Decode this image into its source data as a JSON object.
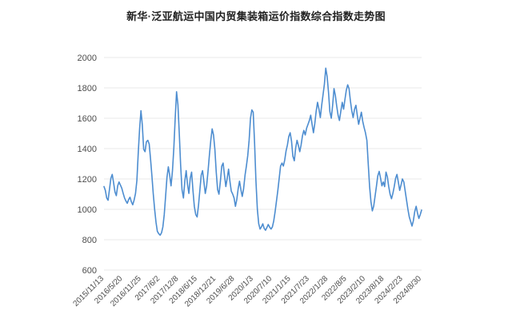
{
  "page": {
    "background": "#ffffff"
  },
  "chart_data": {
    "type": "line",
    "title": "新华·泛亚航运中国内贸集装箱运价指数综合指数走势图",
    "legend": "none",
    "grid": true,
    "line_color": "#4d8dd0",
    "gridline_color": "#e8e8e8",
    "tick_label_color": "#4d4d4d",
    "ylim": [
      600,
      2000
    ],
    "y_ticks": [
      600,
      800,
      1000,
      1200,
      1400,
      1600,
      1800,
      2000
    ],
    "x_tick_labels": [
      "2015/11/13",
      "2016/5/20",
      "2016/11/25",
      "2017/6/2",
      "2017/12/8",
      "2018/6/15",
      "2018/12/21",
      "2019/6/28",
      "2020/1/3",
      "2020/7/10",
      "2021/1/15",
      "2021/7/23",
      "2022/1/28",
      "2022/8/5",
      "2023/2/10",
      "2023/8/18",
      "2024/2/23",
      "2024/8/30"
    ],
    "values": [
      1150,
      1125,
      1075,
      1060,
      1130,
      1205,
      1230,
      1175,
      1115,
      1090,
      1155,
      1180,
      1160,
      1140,
      1105,
      1075,
      1055,
      1040,
      1065,
      1080,
      1050,
      1030,
      1060,
      1105,
      1190,
      1370,
      1530,
      1650,
      1555,
      1395,
      1380,
      1445,
      1455,
      1430,
      1330,
      1220,
      1100,
      1000,
      915,
      855,
      840,
      830,
      845,
      885,
      965,
      1085,
      1210,
      1280,
      1225,
      1155,
      1255,
      1405,
      1600,
      1775,
      1690,
      1500,
      1290,
      1130,
      1075,
      1185,
      1255,
      1165,
      1105,
      1205,
      1245,
      1125,
      1020,
      965,
      950,
      1025,
      1125,
      1225,
      1255,
      1180,
      1105,
      1155,
      1255,
      1360,
      1455,
      1530,
      1490,
      1395,
      1245,
      1130,
      1100,
      1185,
      1285,
      1305,
      1225,
      1150,
      1205,
      1265,
      1185,
      1120,
      1100,
      1075,
      1020,
      1065,
      1135,
      1185,
      1130,
      1085,
      1135,
      1225,
      1285,
      1355,
      1455,
      1600,
      1655,
      1640,
      1440,
      1190,
      1000,
      905,
      870,
      885,
      905,
      875,
      862,
      880,
      900,
      882,
      870,
      885,
      925,
      985,
      1055,
      1125,
      1205,
      1285,
      1305,
      1285,
      1325,
      1385,
      1425,
      1480,
      1505,
      1450,
      1350,
      1320,
      1405,
      1455,
      1420,
      1380,
      1425,
      1485,
      1520,
      1490,
      1535,
      1560,
      1585,
      1620,
      1560,
      1505,
      1565,
      1645,
      1705,
      1660,
      1605,
      1685,
      1755,
      1825,
      1930,
      1875,
      1775,
      1645,
      1600,
      1685,
      1795,
      1750,
      1680,
      1620,
      1585,
      1645,
      1705,
      1660,
      1725,
      1785,
      1820,
      1795,
      1715,
      1650,
      1605,
      1660,
      1685,
      1620,
      1560,
      1600,
      1640,
      1580,
      1540,
      1505,
      1455,
      1300,
      1150,
      1050,
      990,
      1020,
      1085,
      1150,
      1220,
      1250,
      1205,
      1155,
      1180,
      1150,
      1245,
      1215,
      1150,
      1100,
      1070,
      1105,
      1150,
      1205,
      1230,
      1180,
      1125,
      1160,
      1200,
      1180,
      1120,
      1060,
      1000,
      950,
      920,
      890,
      925,
      985,
      1020,
      975,
      940,
      965,
      995
    ]
  }
}
